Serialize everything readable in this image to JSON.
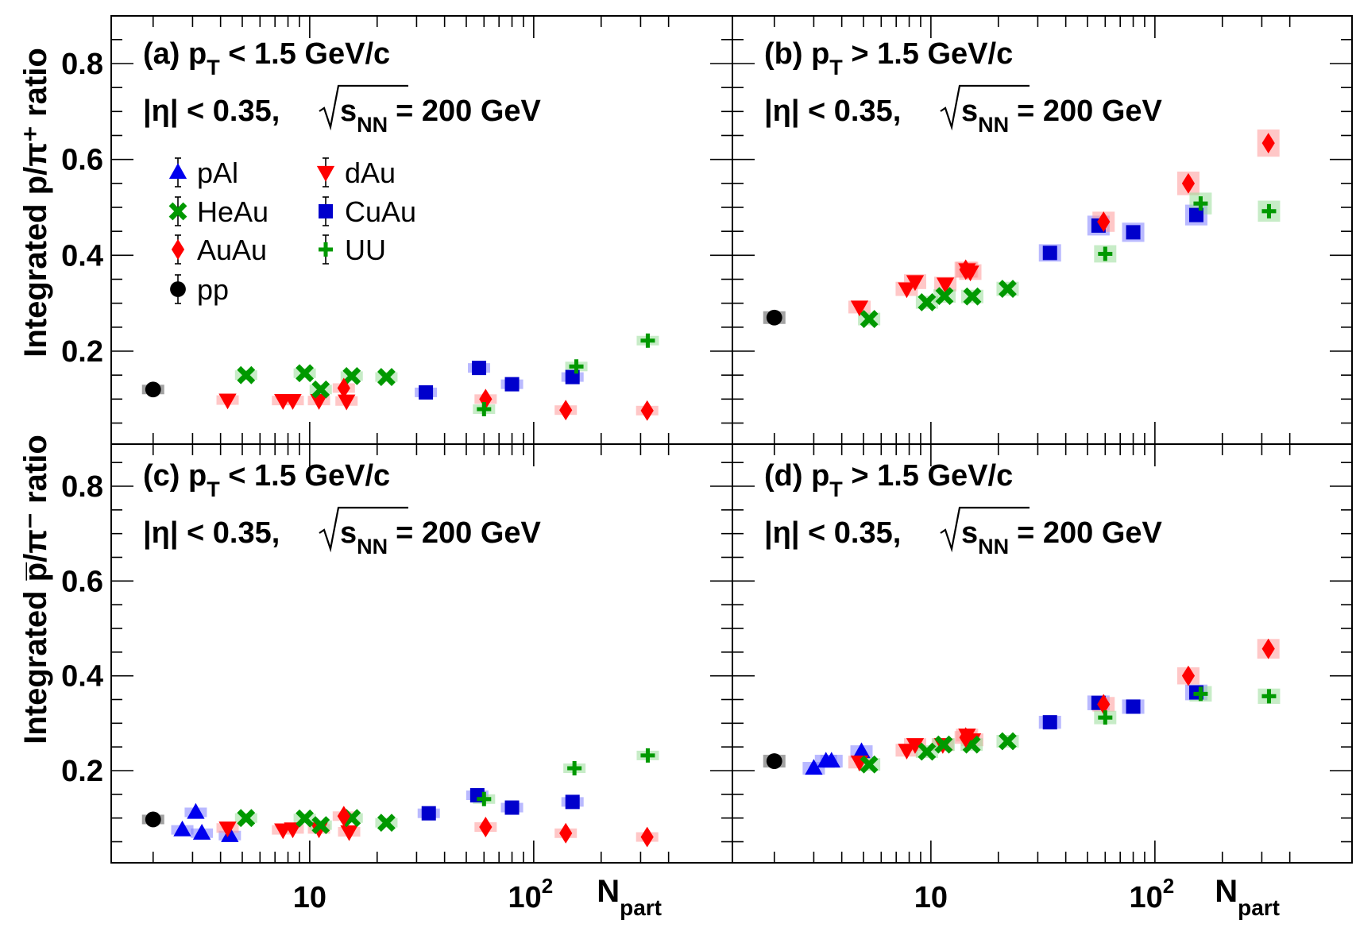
{
  "figure": {
    "ylabel_top": "Integrated p/π⁺ ratio",
    "ylabel_bottom": "Integrated p̅/π⁻ ratio",
    "xlabel": "N",
    "xlabel_sub": "part",
    "x_tick_labels": [
      "10",
      "10"
    ],
    "x_tick_superscripts": [
      "",
      "2"
    ]
  },
  "panels": [
    {
      "id": "a",
      "title_prefix": "(a) p",
      "title_sub": "T",
      "title_suffix": " < 1.5 GeV/c"
    },
    {
      "id": "b",
      "title_prefix": "(b) p",
      "title_sub": "T",
      "title_suffix": " > 1.5 GeV/c"
    },
    {
      "id": "c",
      "title_prefix": "(c) p",
      "title_sub": "T",
      "title_suffix": " < 1.5 GeV/c"
    },
    {
      "id": "d",
      "title_prefix": "(d) p",
      "title_sub": "T",
      "title_suffix": " > 1.5 GeV/c"
    }
  ],
  "condition": {
    "eta": "|η| < 0.35,",
    "s": "s",
    "sub": "NN",
    "energy": "= 200 GeV"
  },
  "legend": [
    {
      "name": "pAl",
      "marker": "triangle-up",
      "color": "#0000ee"
    },
    {
      "name": "dAu",
      "marker": "triangle-down",
      "color": "#ff0000"
    },
    {
      "name": "HeAu",
      "marker": "cross-x",
      "color": "#009900"
    },
    {
      "name": "CuAu",
      "marker": "square",
      "color": "#0000cc"
    },
    {
      "name": "AuAu",
      "marker": "diamond",
      "color": "#ff0000"
    },
    {
      "name": "UU",
      "marker": "plus",
      "color": "#009900"
    },
    {
      "name": "pp",
      "marker": "circle",
      "color": "#000000"
    }
  ],
  "chart_data": [
    {
      "type": "scatter",
      "panel": "a",
      "xscale": "log",
      "xlim": [
        1.3,
        500
      ],
      "ylim": [
        0,
        0.88
      ],
      "series": [
        {
          "name": "pp",
          "x": [
            2
          ],
          "y": [
            0.12
          ]
        },
        {
          "name": "dAu",
          "x": [
            4.3,
            7.6,
            8.4,
            11,
            14.6
          ],
          "y": [
            0.098,
            0.097,
            0.097,
            0.097,
            0.096
          ]
        },
        {
          "name": "HeAu",
          "x": [
            5.2,
            9.5,
            11.2,
            15.4,
            22
          ],
          "y": [
            0.15,
            0.154,
            0.12,
            0.148,
            0.146
          ]
        },
        {
          "name": "CuAu",
          "x": [
            33,
            57,
            80,
            149
          ],
          "y": [
            0.114,
            0.165,
            0.131,
            0.146
          ]
        },
        {
          "name": "AuAu",
          "x": [
            14.2,
            61,
            139,
            321
          ],
          "y": [
            0.123,
            0.1,
            0.077,
            0.076
          ]
        },
        {
          "name": "UU",
          "x": [
            60,
            155,
            323
          ],
          "y": [
            0.079,
            0.168,
            0.222
          ]
        }
      ]
    },
    {
      "type": "scatter",
      "panel": "b",
      "xscale": "log",
      "xlim": [
        1.3,
        500
      ],
      "ylim": [
        0,
        0.88
      ],
      "series": [
        {
          "name": "pp",
          "x": [
            2
          ],
          "y": [
            0.27
          ]
        },
        {
          "name": "dAu",
          "x": [
            4.8,
            7.8,
            8.5,
            11.6,
            14.5,
            15
          ],
          "y": [
            0.292,
            0.33,
            0.345,
            0.34,
            0.37,
            0.365
          ]
        },
        {
          "name": "HeAu",
          "x": [
            5.3,
            9.6,
            11.5,
            15.3,
            22
          ],
          "y": [
            0.267,
            0.302,
            0.315,
            0.314,
            0.33
          ]
        },
        {
          "name": "CuAu",
          "x": [
            34,
            56,
            80,
            153
          ],
          "y": [
            0.405,
            0.462,
            0.448,
            0.484
          ]
        },
        {
          "name": "AuAu",
          "x": [
            14.3,
            59,
            141,
            321
          ],
          "y": [
            0.37,
            0.47,
            0.55,
            0.634
          ]
        },
        {
          "name": "UU",
          "x": [
            60,
            160,
            323
          ],
          "y": [
            0.403,
            0.508,
            0.492
          ]
        }
      ]
    },
    {
      "type": "scatter",
      "panel": "c",
      "xscale": "log",
      "xlim": [
        1.3,
        500
      ],
      "ylim": [
        0,
        0.88
      ],
      "series": [
        {
          "name": "pp",
          "x": [
            2
          ],
          "y": [
            0.097
          ]
        },
        {
          "name": "pAl",
          "x": [
            2.7,
            3.1,
            3.3,
            4.4
          ],
          "y": [
            0.075,
            0.112,
            0.068,
            0.063
          ]
        },
        {
          "name": "dAu",
          "x": [
            4.3,
            7.6,
            8.4,
            11,
            15
          ],
          "y": [
            0.079,
            0.075,
            0.077,
            0.077,
            0.071
          ]
        },
        {
          "name": "HeAu",
          "x": [
            5.2,
            9.5,
            11.2,
            15.4,
            22
          ],
          "y": [
            0.1,
            0.099,
            0.085,
            0.1,
            0.09
          ]
        },
        {
          "name": "CuAu",
          "x": [
            34,
            56,
            80,
            149
          ],
          "y": [
            0.11,
            0.148,
            0.122,
            0.134
          ]
        },
        {
          "name": "AuAu",
          "x": [
            14.2,
            61,
            139,
            321
          ],
          "y": [
            0.104,
            0.081,
            0.068,
            0.06
          ]
        },
        {
          "name": "UU",
          "x": [
            60,
            152,
            323
          ],
          "y": [
            0.14,
            0.205,
            0.232
          ]
        }
      ]
    },
    {
      "type": "scatter",
      "panel": "d",
      "xscale": "log",
      "xlim": [
        1.3,
        500
      ],
      "ylim": [
        0,
        0.88
      ],
      "series": [
        {
          "name": "pp",
          "x": [
            2
          ],
          "y": [
            0.22
          ]
        },
        {
          "name": "pAl",
          "x": [
            3,
            3.4,
            3.6,
            4.9
          ],
          "y": [
            0.205,
            0.22,
            0.22,
            0.24
          ]
        },
        {
          "name": "dAu",
          "x": [
            4.8,
            7.8,
            8.5,
            11.3,
            14.5,
            15.3
          ],
          "y": [
            0.218,
            0.243,
            0.255,
            0.255,
            0.275,
            0.265
          ]
        },
        {
          "name": "HeAu",
          "x": [
            5.3,
            9.6,
            11.4,
            15.2,
            22
          ],
          "y": [
            0.213,
            0.24,
            0.255,
            0.255,
            0.262
          ]
        },
        {
          "name": "CuAu",
          "x": [
            34,
            56,
            80,
            153
          ],
          "y": [
            0.302,
            0.343,
            0.335,
            0.365
          ]
        },
        {
          "name": "AuAu",
          "x": [
            14.3,
            59,
            141,
            321
          ],
          "y": [
            0.27,
            0.34,
            0.4,
            0.457
          ]
        },
        {
          "name": "UU",
          "x": [
            60,
            160,
            323
          ],
          "y": [
            0.312,
            0.362,
            0.357
          ]
        }
      ]
    }
  ]
}
